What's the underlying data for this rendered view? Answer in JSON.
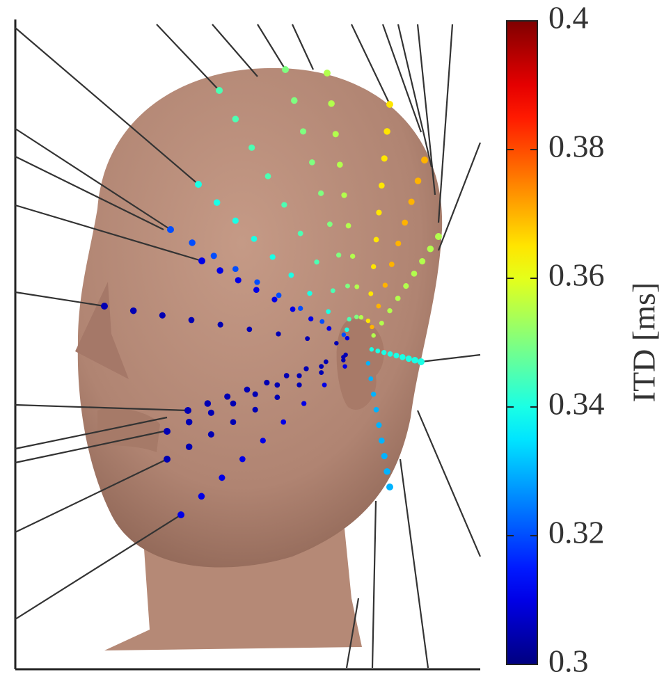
{
  "chart_data": {
    "type": "colorbar",
    "zlabel": "ITD [ms]",
    "colormap": "jet",
    "zlim": [
      0.3,
      0.4
    ],
    "zticks": [
      0.3,
      0.32,
      0.34,
      0.36,
      0.38,
      0.4
    ]
  }
}
